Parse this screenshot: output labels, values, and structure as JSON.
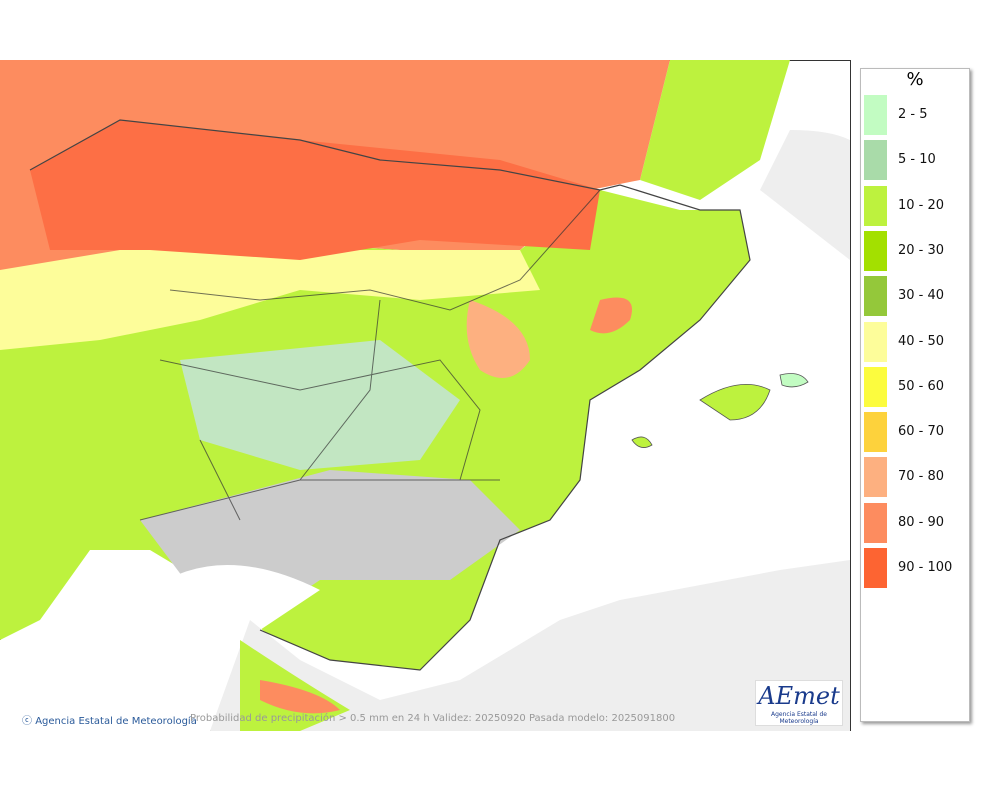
{
  "legend": {
    "title": "%",
    "items": [
      {
        "label": "2 - 5",
        "color": "#c2fcc2"
      },
      {
        "label": "5 - 10",
        "color": "#a9dba9"
      },
      {
        "label": "10 - 20",
        "color": "#bdf23e"
      },
      {
        "label": "20 - 30",
        "color": "#a3e000"
      },
      {
        "label": "30 - 40",
        "color": "#94c83a"
      },
      {
        "label": "40 - 50",
        "color": "#fdfd9a"
      },
      {
        "label": "50 - 60",
        "color": "#fcfc3e"
      },
      {
        "label": "60 - 70",
        "color": "#fdd23c"
      },
      {
        "label": "70 - 80",
        "color": "#fdb080"
      },
      {
        "label": "80 - 90",
        "color": "#fd8c5f"
      },
      {
        "label": "90 - 100",
        "color": "#fd6432"
      }
    ]
  },
  "footer": {
    "credit": "Agencia Estatal de Meteorología",
    "caption": "Probabilidad de precipitación > 0.5 mm en 24 h Validez: 20250920 Pasada modelo: 2025091800"
  },
  "logo": {
    "text": "AEmet",
    "subtitle": "Agencia Estatal de Meteorología"
  }
}
